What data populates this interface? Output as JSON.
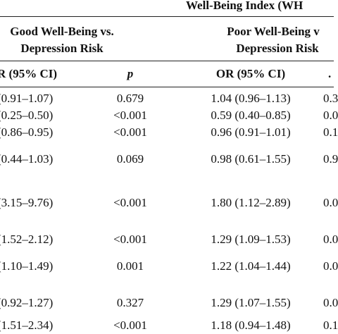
{
  "table": {
    "super_header": "Well-Being Index (WH",
    "group_good": {
      "line1": "Good Well-Being vs.",
      "line2": "Depression Risk"
    },
    "group_poor": {
      "line1": "Poor Well-Being v",
      "line2": "Depression Risk"
    },
    "columns": {
      "or1": "R (95% CI)",
      "p1": "p",
      "or2": "OR (95% CI)",
      "p2": "."
    },
    "rows": [
      {
        "or1": "(0.91–1.07)",
        "p1": "0.679",
        "or2": "1.04 (0.96–1.13)",
        "p2": "0.3"
      },
      {
        "or1": "(0.25–0.50)",
        "p1": "<0.001",
        "or2": "0.59 (0.40–0.85)",
        "p2": "0.0"
      },
      {
        "or1": "(0.86–0.95)",
        "p1": "<0.001",
        "or2": "0.96 (0.91–1.01)",
        "p2": "0.1"
      },
      {
        "or1": "(0.44–1.03)",
        "p1": "0.069",
        "or2": "0.98 (0.61–1.55)",
        "p2": "0.9"
      },
      {
        "or1": "(3.15–9.76)",
        "p1": "<0.001",
        "or2": "1.80 (1.12–2.89)",
        "p2": "0.0"
      },
      {
        "or1": "(1.52–2.12)",
        "p1": "<0.001",
        "or2": "1.29 (1.09–1.53)",
        "p2": "0.0"
      },
      {
        "or1": "(1.10–1.49)",
        "p1": "0.001",
        "or2": "1.22 (1.04–1.44)",
        "p2": "0.0"
      },
      {
        "or1": "(0.92–1.27)",
        "p1": "0.327",
        "or2": "1.29 (1.07–1.55)",
        "p2": "0.0"
      },
      {
        "or1": "(1.51–2.34)",
        "p1": "<0.001",
        "or2": "1.18 (0.94–1.48)",
        "p2": "0.1"
      }
    ]
  }
}
